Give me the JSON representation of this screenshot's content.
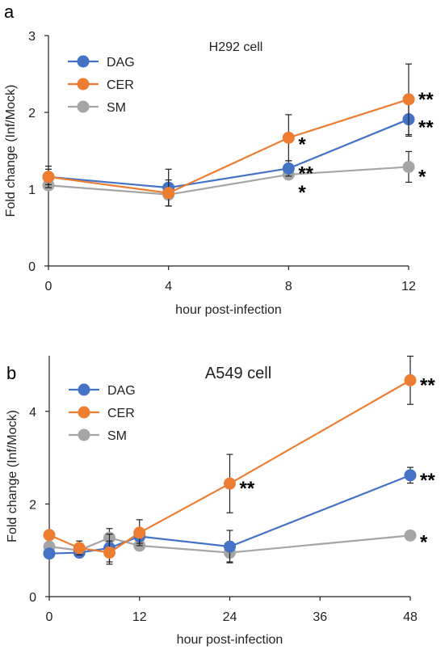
{
  "colors": {
    "DAG": "#4472c4",
    "CER": "#ed7d31",
    "SM": "#a5a5a5"
  },
  "chart_data": [
    {
      "panel": "a",
      "type": "line",
      "title": "H292 cell",
      "xlabel": "hour post-infection",
      "ylabel": "Fold change (Inf/Mock)",
      "x": [
        0,
        4,
        8,
        12
      ],
      "xticks": [
        "0",
        "4",
        "8",
        "12"
      ],
      "yticks": [
        "0",
        "1",
        "2",
        "3"
      ],
      "xlim": [
        0,
        12
      ],
      "ylim": [
        0,
        3
      ],
      "legend_position": "top-left",
      "series": [
        {
          "name": "DAG",
          "values": [
            1.16,
            1.02,
            1.27,
            1.91
          ],
          "error": [
            0.14,
            0.24,
            0.1,
            0.22
          ]
        },
        {
          "name": "CER",
          "values": [
            1.16,
            0.95,
            1.67,
            2.17
          ],
          "error": [
            0.1,
            0.17,
            0.3,
            0.46
          ]
        },
        {
          "name": "SM",
          "values": [
            1.05,
            0.93,
            1.19,
            1.29
          ],
          "error": [
            0.05,
            0.15,
            0.06,
            0.2
          ]
        }
      ],
      "annotations": [
        {
          "series": "CER",
          "x": 12,
          "text": "**"
        },
        {
          "series": "DAG",
          "x": 12,
          "text": "**"
        },
        {
          "series": "SM",
          "x": 12,
          "text": "*"
        },
        {
          "series": "CER",
          "x": 8,
          "text": "*"
        },
        {
          "series": "DAG",
          "x": 8,
          "text": "**"
        },
        {
          "series": "SM",
          "x": 8,
          "text": "*"
        }
      ]
    },
    {
      "panel": "b",
      "type": "line",
      "title": "A549 cell",
      "xlabel": "hour post-infection",
      "ylabel": "Fold change (Inf/Mock)",
      "x": [
        0,
        4,
        8,
        12,
        24,
        48
      ],
      "xticks": [
        "0",
        "12",
        "24",
        "36",
        "48"
      ],
      "yticks": [
        "0",
        "2",
        "4"
      ],
      "xlim": [
        0,
        48
      ],
      "ylim": [
        0,
        5.2
      ],
      "legend_position": "top-left",
      "series": [
        {
          "name": "DAG",
          "values": [
            0.93,
            0.95,
            1.05,
            1.3,
            1.08,
            2.62
          ],
          "error": [
            0.1,
            0.1,
            0.3,
            0.15,
            0.35,
            0.17
          ]
        },
        {
          "name": "CER",
          "values": [
            1.33,
            1.05,
            0.95,
            1.38,
            2.44,
            4.67
          ],
          "error": [
            0.1,
            0.15,
            0.25,
            0.28,
            0.63,
            0.52
          ]
        },
        {
          "name": "SM",
          "values": [
            1.08,
            1.0,
            1.27,
            1.1,
            0.95,
            1.32
          ],
          "error": [
            0.1,
            0.1,
            0.2,
            0.1,
            0.2,
            0.05
          ]
        }
      ],
      "annotations": [
        {
          "series": "CER",
          "x": 48,
          "text": "**"
        },
        {
          "series": "DAG",
          "x": 48,
          "text": "**"
        },
        {
          "series": "SM",
          "x": 48,
          "text": "*"
        },
        {
          "series": "CER",
          "x": 24,
          "text": "**"
        }
      ]
    }
  ]
}
